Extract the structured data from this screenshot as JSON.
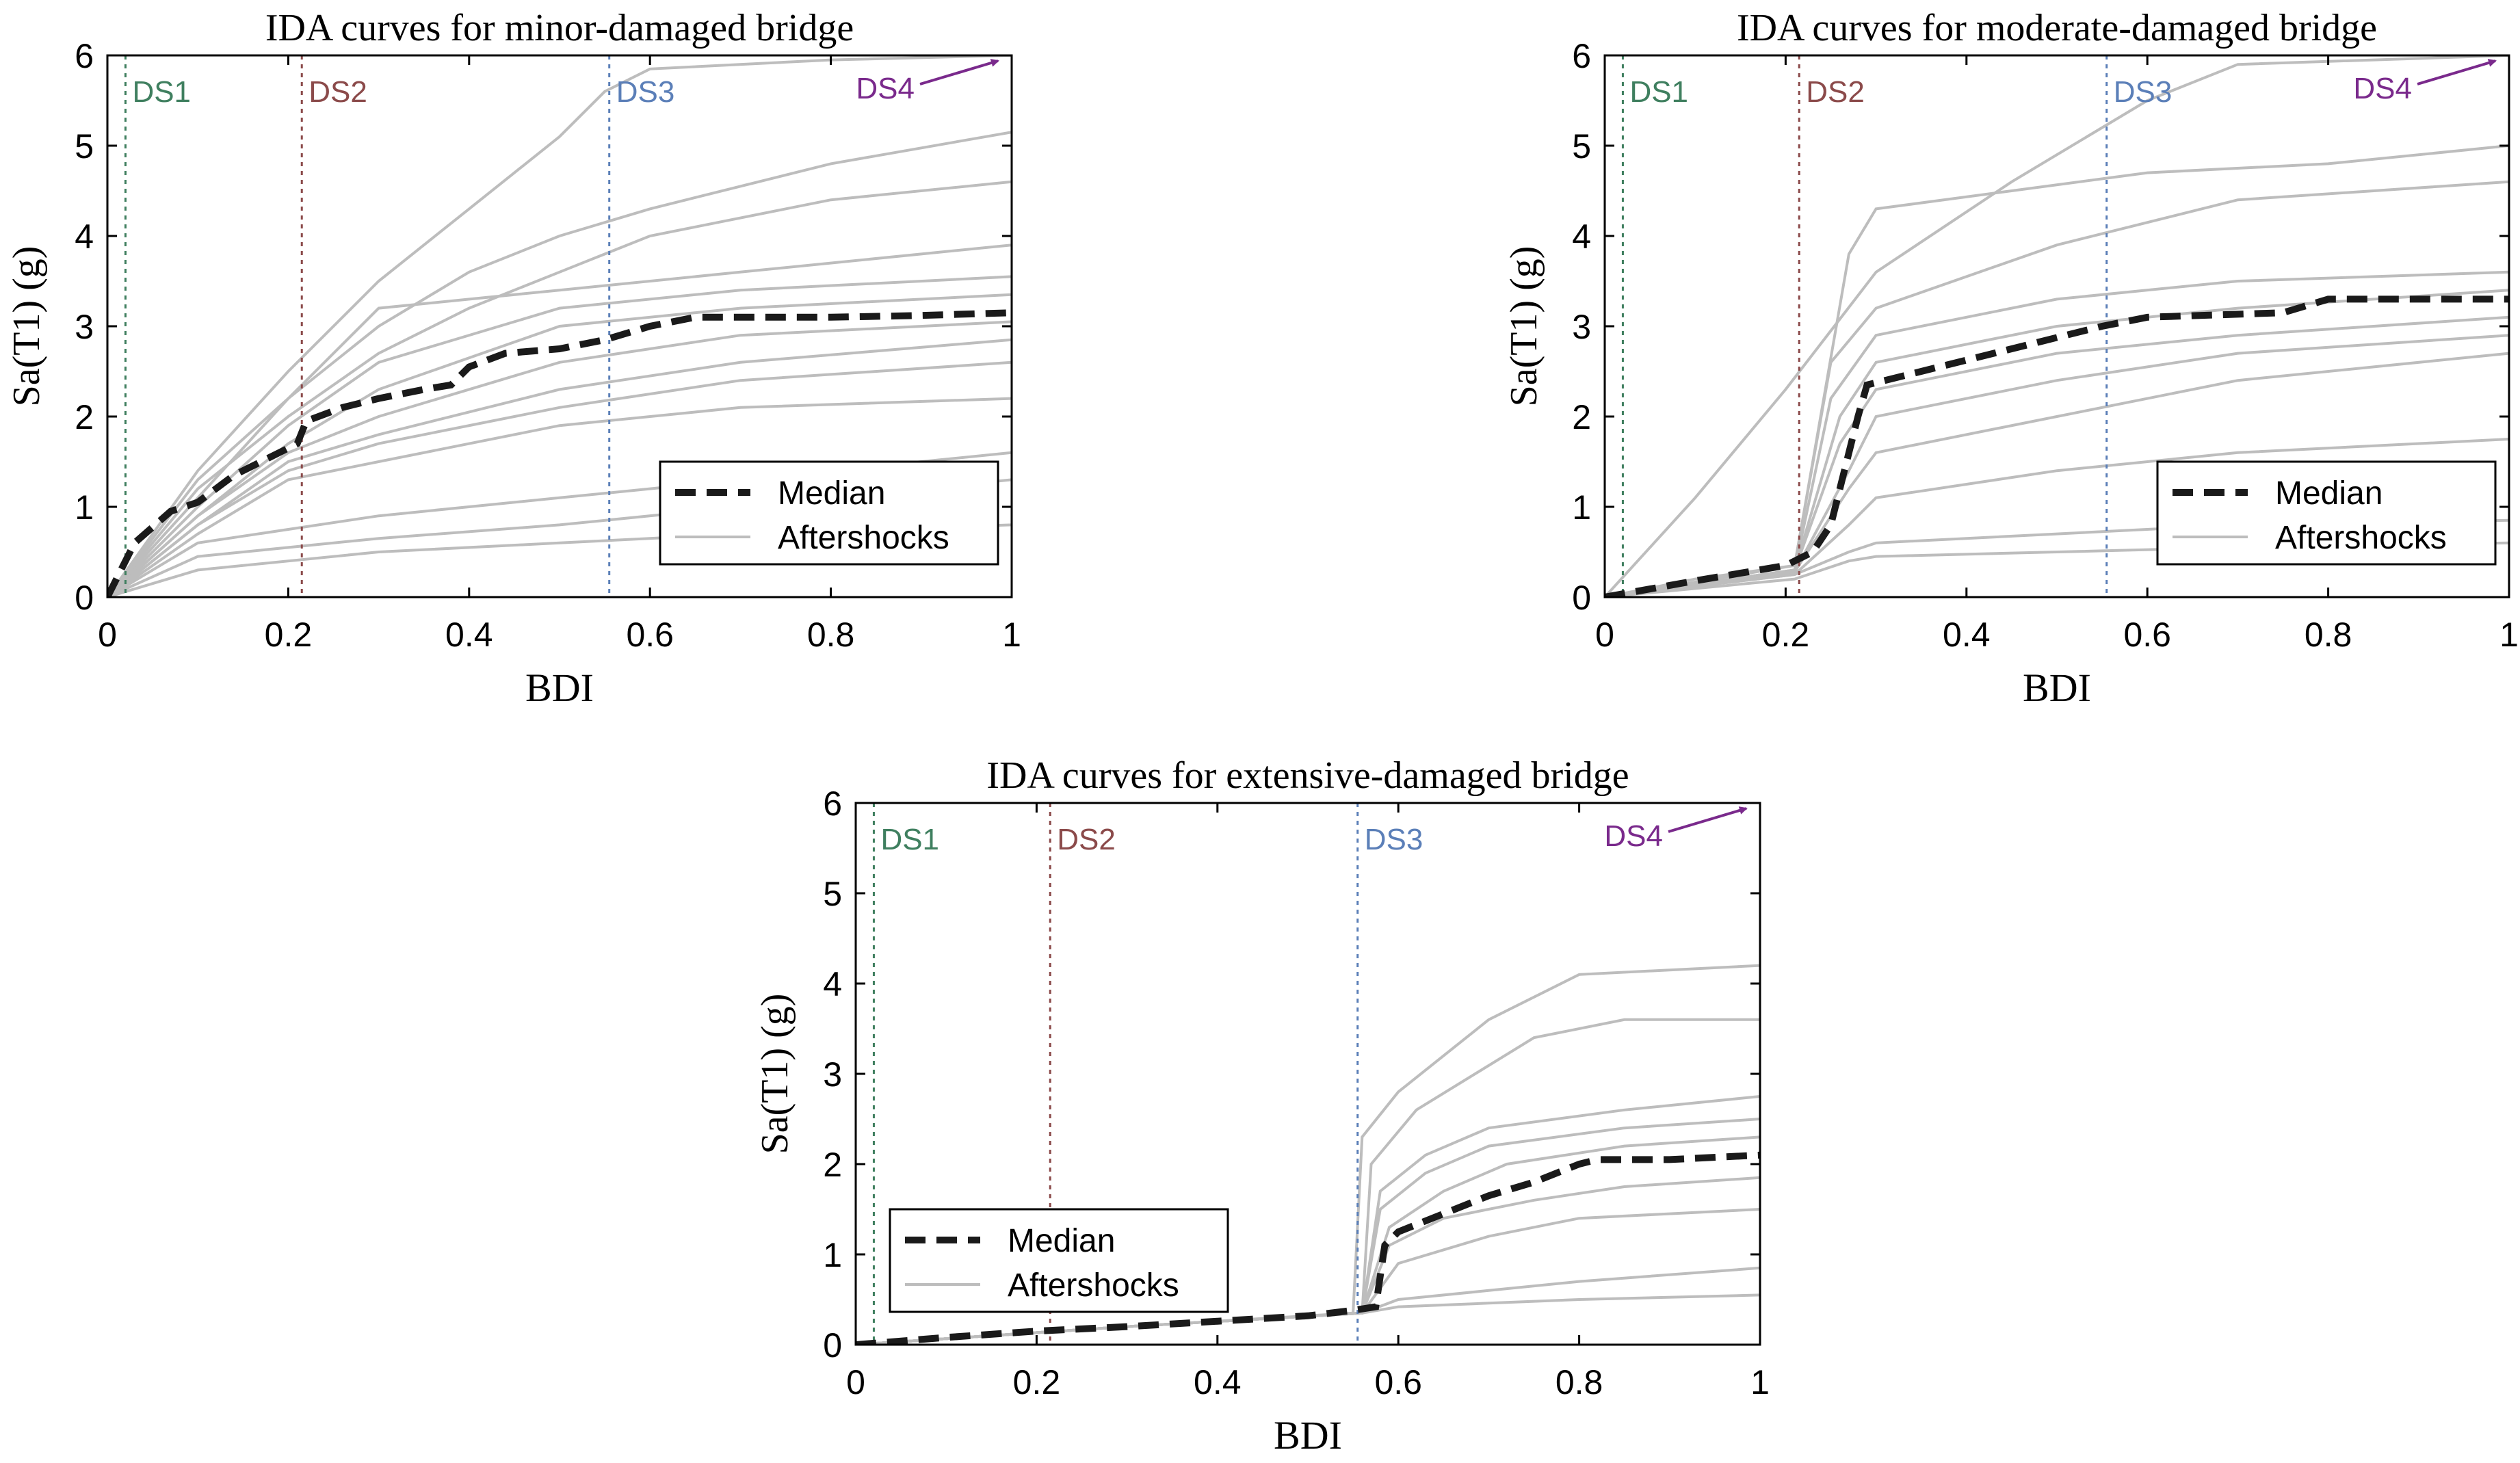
{
  "chart_data": [
    {
      "type": "line",
      "title": "IDA curves for minor-damaged bridge",
      "xlabel": "BDI",
      "ylabel": "Sa(T1) (g)",
      "xlim": [
        0,
        1
      ],
      "ylim": [
        0,
        6
      ],
      "xticks": [
        "0",
        "0.2",
        "0.4",
        "0.6",
        "0.8",
        "1"
      ],
      "yticks": [
        "0",
        "1",
        "2",
        "3",
        "4",
        "5",
        "6"
      ],
      "legend": {
        "position": "bottom-right",
        "entries": [
          "Median",
          "Aftershocks"
        ]
      },
      "damage_states": [
        {
          "label": "DS1",
          "x": 0.02,
          "color": "#3f7f5f"
        },
        {
          "label": "DS2",
          "x": 0.215,
          "color": "#8b4a4a"
        },
        {
          "label": "DS3",
          "x": 0.555,
          "color": "#5b7fb8"
        },
        {
          "label": "DS4",
          "color": "#7a2a8c",
          "arrow": true
        }
      ],
      "median": {
        "name": "Median",
        "x": [
          0,
          0.03,
          0.07,
          0.1,
          0.14,
          0.18,
          0.21,
          0.22,
          0.26,
          0.3,
          0.35,
          0.38,
          0.4,
          0.44,
          0.5,
          0.55,
          0.6,
          0.65,
          0.7,
          0.8,
          0.9,
          1.0
        ],
        "y": [
          0,
          0.6,
          0.95,
          1.05,
          1.35,
          1.55,
          1.7,
          1.95,
          2.1,
          2.2,
          2.3,
          2.35,
          2.55,
          2.7,
          2.75,
          2.85,
          3.0,
          3.1,
          3.1,
          3.1,
          3.12,
          3.15
        ]
      },
      "series": [
        {
          "name": "Aftershocks",
          "x": [
            0,
            0.1,
            0.2,
            0.3,
            0.4,
            0.5,
            0.55,
            0.6,
            0.8,
            1.0
          ],
          "y": [
            0,
            1.4,
            2.5,
            3.5,
            4.3,
            5.1,
            5.6,
            5.85,
            5.95,
            6.0
          ]
        },
        {
          "name": "Aftershocks",
          "x": [
            0,
            0.1,
            0.2,
            0.3,
            0.4,
            0.5,
            0.6,
            0.8,
            1.0
          ],
          "y": [
            0,
            1.3,
            2.2,
            3.0,
            3.6,
            4.0,
            4.3,
            4.8,
            5.15
          ]
        },
        {
          "name": "Aftershocks",
          "x": [
            0,
            0.1,
            0.2,
            0.3,
            0.4,
            0.5,
            0.6,
            0.8,
            1.0
          ],
          "y": [
            0,
            1.2,
            2.0,
            2.7,
            3.2,
            3.6,
            4.0,
            4.4,
            4.6
          ]
        },
        {
          "name": "Aftershocks",
          "x": [
            0,
            0.1,
            0.2,
            0.3,
            0.5,
            0.7,
            1.0
          ],
          "y": [
            0,
            1.1,
            2.2,
            3.2,
            3.4,
            3.6,
            3.9
          ]
        },
        {
          "name": "Aftershocks",
          "x": [
            0,
            0.1,
            0.2,
            0.3,
            0.5,
            0.7,
            1.0
          ],
          "y": [
            0,
            1.0,
            1.9,
            2.6,
            3.2,
            3.4,
            3.55
          ]
        },
        {
          "name": "Aftershocks",
          "x": [
            0,
            0.1,
            0.2,
            0.3,
            0.5,
            0.7,
            1.0
          ],
          "y": [
            0,
            0.9,
            1.7,
            2.3,
            3.0,
            3.2,
            3.35
          ]
        },
        {
          "name": "Aftershocks",
          "x": [
            0,
            0.1,
            0.2,
            0.3,
            0.5,
            0.7,
            1.0
          ],
          "y": [
            0,
            0.9,
            1.6,
            2.0,
            2.6,
            2.9,
            3.05
          ]
        },
        {
          "name": "Aftershocks",
          "x": [
            0,
            0.1,
            0.2,
            0.3,
            0.5,
            0.7,
            1.0
          ],
          "y": [
            0,
            0.8,
            1.5,
            1.8,
            2.3,
            2.6,
            2.85
          ]
        },
        {
          "name": "Aftershocks",
          "x": [
            0,
            0.1,
            0.2,
            0.3,
            0.5,
            0.7,
            1.0
          ],
          "y": [
            0,
            0.8,
            1.4,
            1.7,
            2.1,
            2.4,
            2.6
          ]
        },
        {
          "name": "Aftershocks",
          "x": [
            0,
            0.1,
            0.2,
            0.3,
            0.5,
            0.7,
            1.0
          ],
          "y": [
            0,
            0.7,
            1.3,
            1.5,
            1.9,
            2.1,
            2.2
          ]
        },
        {
          "name": "Aftershocks",
          "x": [
            0,
            0.1,
            0.3,
            0.5,
            0.7,
            1.0
          ],
          "y": [
            0,
            0.6,
            0.9,
            1.1,
            1.3,
            1.6
          ]
        },
        {
          "name": "Aftershocks",
          "x": [
            0,
            0.1,
            0.3,
            0.5,
            0.7,
            1.0
          ],
          "y": [
            0,
            0.45,
            0.65,
            0.8,
            1.0,
            1.3
          ]
        },
        {
          "name": "Aftershocks",
          "x": [
            0,
            0.1,
            0.3,
            0.5,
            0.7,
            1.0
          ],
          "y": [
            0,
            0.3,
            0.5,
            0.6,
            0.7,
            0.8
          ]
        }
      ]
    },
    {
      "type": "line",
      "title": "IDA curves for moderate-damaged bridge",
      "xlabel": "BDI",
      "ylabel": "Sa(T1) (g)",
      "xlim": [
        0,
        1
      ],
      "ylim": [
        0,
        6
      ],
      "xticks": [
        "0",
        "0.2",
        "0.4",
        "0.6",
        "0.8",
        "1"
      ],
      "yticks": [
        "0",
        "1",
        "2",
        "3",
        "4",
        "5",
        "6"
      ],
      "legend": {
        "position": "bottom-right",
        "entries": [
          "Median",
          "Aftershocks"
        ]
      },
      "damage_states": [
        {
          "label": "DS1",
          "x": 0.02,
          "color": "#3f7f5f"
        },
        {
          "label": "DS2",
          "x": 0.215,
          "color": "#8b4a4a"
        },
        {
          "label": "DS3",
          "x": 0.555,
          "color": "#5b7fb8"
        },
        {
          "label": "DS4",
          "color": "#7a2a8c",
          "arrow": true
        }
      ],
      "median": {
        "name": "Median",
        "x": [
          0,
          0.1,
          0.2,
          0.23,
          0.25,
          0.265,
          0.28,
          0.29,
          0.35,
          0.45,
          0.55,
          0.6,
          0.75,
          0.8,
          1.0
        ],
        "y": [
          0,
          0.18,
          0.35,
          0.5,
          0.8,
          1.4,
          2.0,
          2.35,
          2.5,
          2.75,
          3.0,
          3.1,
          3.15,
          3.3,
          3.3
        ]
      },
      "series": [
        {
          "name": "Aftershocks",
          "x": [
            0,
            0.1,
            0.2,
            0.3,
            0.45,
            0.6,
            0.7,
            1.0
          ],
          "y": [
            0,
            1.1,
            2.3,
            3.6,
            4.6,
            5.5,
            5.9,
            6.0
          ]
        },
        {
          "name": "Aftershocks",
          "x": [
            0,
            0.1,
            0.21,
            0.23,
            0.27,
            0.3,
            0.45,
            0.6,
            0.8,
            1.0
          ],
          "y": [
            0,
            0.2,
            0.35,
            1.5,
            3.8,
            4.3,
            4.5,
            4.7,
            4.8,
            5.0
          ]
        },
        {
          "name": "Aftershocks",
          "x": [
            0,
            0.21,
            0.25,
            0.3,
            0.5,
            0.7,
            1.0
          ],
          "y": [
            0,
            0.35,
            2.6,
            3.2,
            3.9,
            4.4,
            4.6
          ]
        },
        {
          "name": "Aftershocks",
          "x": [
            0,
            0.21,
            0.25,
            0.3,
            0.5,
            0.7,
            1.0
          ],
          "y": [
            0,
            0.3,
            2.2,
            2.9,
            3.3,
            3.5,
            3.6
          ]
        },
        {
          "name": "Aftershocks",
          "x": [
            0,
            0.21,
            0.26,
            0.3,
            0.5,
            0.7,
            1.0
          ],
          "y": [
            0,
            0.3,
            2.0,
            2.6,
            3.0,
            3.2,
            3.4
          ]
        },
        {
          "name": "Aftershocks",
          "x": [
            0,
            0.21,
            0.26,
            0.3,
            0.5,
            0.7,
            1.0
          ],
          "y": [
            0,
            0.3,
            1.7,
            2.3,
            2.7,
            2.9,
            3.1
          ]
        },
        {
          "name": "Aftershocks",
          "x": [
            0,
            0.21,
            0.27,
            0.3,
            0.5,
            0.7,
            1.0
          ],
          "y": [
            0,
            0.28,
            1.4,
            2.0,
            2.4,
            2.7,
            2.9
          ]
        },
        {
          "name": "Aftershocks",
          "x": [
            0,
            0.21,
            0.27,
            0.3,
            0.5,
            0.7,
            1.0
          ],
          "y": [
            0,
            0.28,
            1.2,
            1.6,
            2.0,
            2.4,
            2.7
          ]
        },
        {
          "name": "Aftershocks",
          "x": [
            0,
            0.21,
            0.27,
            0.3,
            0.5,
            0.7,
            1.0
          ],
          "y": [
            0,
            0.25,
            0.8,
            1.1,
            1.4,
            1.6,
            1.75
          ]
        },
        {
          "name": "Aftershocks",
          "x": [
            0,
            0.21,
            0.27,
            0.3,
            0.5,
            0.7,
            1.0
          ],
          "y": [
            0,
            0.25,
            0.5,
            0.6,
            0.7,
            0.8,
            0.85
          ]
        },
        {
          "name": "Aftershocks",
          "x": [
            0,
            0.21,
            0.27,
            0.3,
            0.5,
            0.7,
            1.0
          ],
          "y": [
            0,
            0.2,
            0.4,
            0.45,
            0.5,
            0.55,
            0.6
          ]
        }
      ]
    },
    {
      "type": "line",
      "title": "IDA curves for extensive-damaged bridge",
      "xlabel": "BDI",
      "ylabel": "Sa(T1) (g)",
      "xlim": [
        0,
        1
      ],
      "ylim": [
        0,
        6
      ],
      "xticks": [
        "0",
        "0.2",
        "0.4",
        "0.6",
        "0.8",
        "1"
      ],
      "yticks": [
        "0",
        "1",
        "2",
        "3",
        "4",
        "5",
        "6"
      ],
      "legend": {
        "position": "bottom-left",
        "entries": [
          "Median",
          "Aftershocks"
        ]
      },
      "damage_states": [
        {
          "label": "DS1",
          "x": 0.02,
          "color": "#3f7f5f"
        },
        {
          "label": "DS2",
          "x": 0.215,
          "color": "#8b4a4a"
        },
        {
          "label": "DS3",
          "x": 0.555,
          "color": "#5b7fb8"
        },
        {
          "label": "DS4",
          "color": "#7a2a8c",
          "arrow": true
        }
      ],
      "median": {
        "name": "Median",
        "x": [
          0,
          0.1,
          0.2,
          0.3,
          0.4,
          0.5,
          0.55,
          0.575,
          0.585,
          0.6,
          0.65,
          0.7,
          0.75,
          0.8,
          0.82,
          0.9,
          1.0
        ],
        "y": [
          0,
          0.08,
          0.15,
          0.2,
          0.26,
          0.32,
          0.38,
          0.42,
          1.1,
          1.25,
          1.45,
          1.65,
          1.8,
          2.0,
          2.05,
          2.05,
          2.1
        ]
      },
      "series": [
        {
          "name": "Aftershocks",
          "x": [
            0,
            0.3,
            0.55,
            0.56,
            0.6,
            0.7,
            0.8,
            1.0
          ],
          "y": [
            0,
            0.2,
            0.35,
            2.3,
            2.8,
            3.6,
            4.1,
            4.2
          ]
        },
        {
          "name": "Aftershocks",
          "x": [
            0,
            0.3,
            0.56,
            0.57,
            0.62,
            0.75,
            0.85,
            1.0
          ],
          "y": [
            0,
            0.2,
            0.35,
            2.0,
            2.6,
            3.4,
            3.6,
            3.6
          ]
        },
        {
          "name": "Aftershocks",
          "x": [
            0,
            0.3,
            0.56,
            0.58,
            0.63,
            0.7,
            0.85,
            1.0
          ],
          "y": [
            0,
            0.2,
            0.35,
            1.7,
            2.1,
            2.4,
            2.6,
            2.75
          ]
        },
        {
          "name": "Aftershocks",
          "x": [
            0,
            0.3,
            0.56,
            0.58,
            0.63,
            0.7,
            0.85,
            1.0
          ],
          "y": [
            0,
            0.2,
            0.35,
            1.5,
            1.9,
            2.2,
            2.4,
            2.5
          ]
        },
        {
          "name": "Aftershocks",
          "x": [
            0,
            0.3,
            0.56,
            0.59,
            0.65,
            0.72,
            0.85,
            1.0
          ],
          "y": [
            0,
            0.2,
            0.35,
            1.3,
            1.7,
            2.0,
            2.2,
            2.3
          ]
        },
        {
          "name": "Aftershocks",
          "x": [
            0,
            0.3,
            0.56,
            0.59,
            0.65,
            0.75,
            0.85,
            1.0
          ],
          "y": [
            0,
            0.2,
            0.35,
            1.1,
            1.4,
            1.6,
            1.75,
            1.85
          ]
        },
        {
          "name": "Aftershocks",
          "x": [
            0,
            0.3,
            0.56,
            0.6,
            0.7,
            0.8,
            1.0
          ],
          "y": [
            0,
            0.2,
            0.35,
            0.9,
            1.2,
            1.4,
            1.5
          ]
        },
        {
          "name": "Aftershocks",
          "x": [
            0,
            0.3,
            0.56,
            0.6,
            0.7,
            0.8,
            1.0
          ],
          "y": [
            0,
            0.2,
            0.35,
            0.5,
            0.6,
            0.7,
            0.85
          ]
        },
        {
          "name": "Aftershocks",
          "x": [
            0,
            0.3,
            0.56,
            0.6,
            0.7,
            0.8,
            1.0
          ],
          "y": [
            0,
            0.2,
            0.35,
            0.42,
            0.46,
            0.5,
            0.55
          ]
        }
      ]
    }
  ]
}
